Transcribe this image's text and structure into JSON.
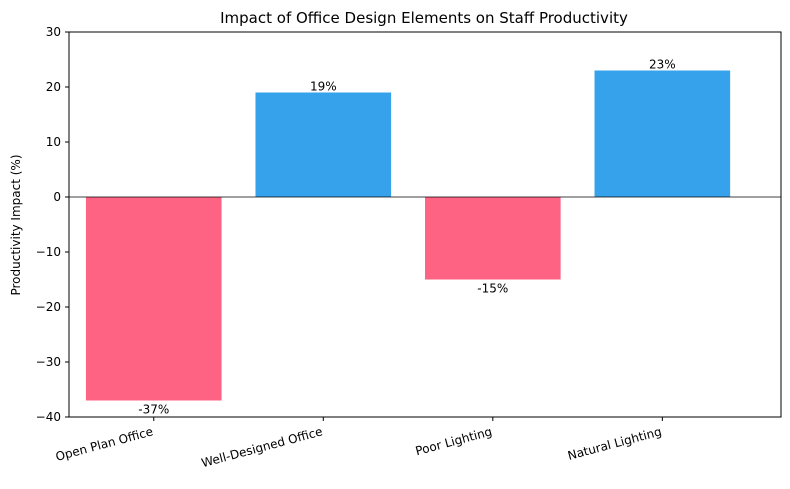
{
  "chart_data": {
    "type": "bar",
    "title": "Impact of Office Design Elements on Staff Productivity",
    "xlabel": "",
    "ylabel": "Productivity Impact (%)",
    "categories": [
      "Open Plan Office",
      "Well-Designed Office",
      "Poor Lighting",
      "Natural Lighting"
    ],
    "values": [
      -37,
      19,
      -15,
      23
    ],
    "data_labels": [
      "-37%",
      "19%",
      "-15%",
      "23%"
    ],
    "ylim": [
      -40,
      30
    ],
    "yticks": [
      -40,
      -30,
      -20,
      -10,
      0,
      10,
      20,
      30
    ],
    "ytick_labels": [
      "−40",
      "−30",
      "−20",
      "−10",
      "0",
      "10",
      "20",
      "30"
    ],
    "grid": false,
    "legend": "none",
    "colors": {
      "negative": "#ff6384",
      "positive": "#36a2eb",
      "zero_line": "#000000"
    }
  }
}
